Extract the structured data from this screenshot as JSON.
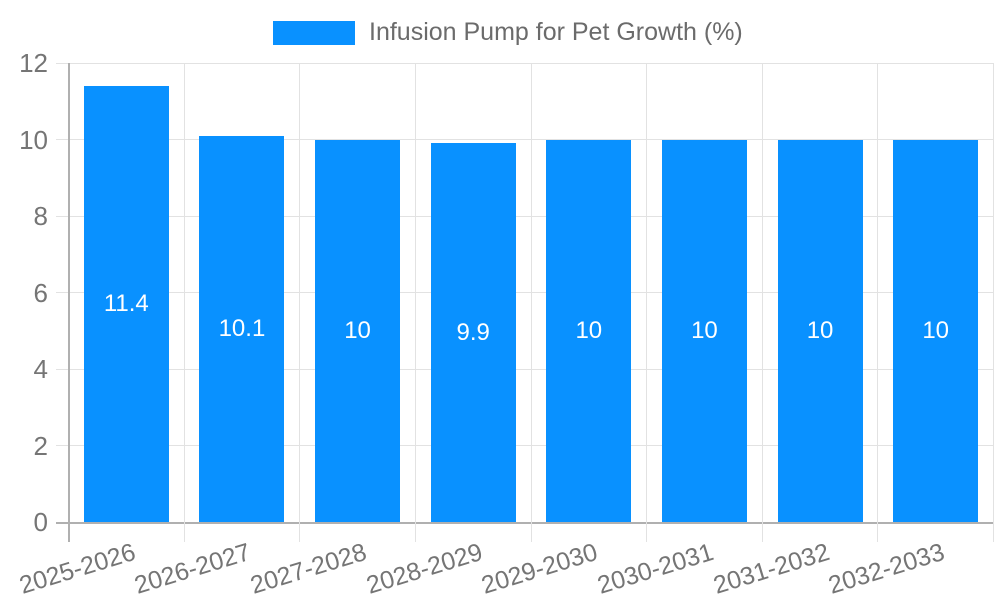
{
  "legend": {
    "label": "Infusion Pump for Pet Growth (%)"
  },
  "chart_data": {
    "type": "bar",
    "title": "Infusion Pump for Pet Growth (%)",
    "categories": [
      "2025-2026",
      "2026-2027",
      "2027-2028",
      "2028-2029",
      "2029-2030",
      "2030-2031",
      "2031-2032",
      "2032-2033"
    ],
    "values": [
      11.4,
      10.1,
      10,
      9.9,
      10,
      10,
      10,
      10
    ],
    "value_labels": [
      "11.4",
      "10.1",
      "10",
      "9.9",
      "10",
      "10",
      "10",
      "10"
    ],
    "xlabel": "",
    "ylabel": "",
    "ylim": [
      0,
      12
    ],
    "yticks": [
      0,
      2,
      4,
      6,
      8,
      10,
      12
    ],
    "ytick_labels": [
      "0",
      "2",
      "4",
      "6",
      "8",
      "10",
      "12"
    ],
    "grid": true,
    "legend_position": "top-center",
    "colors": {
      "bar": "#0991ff",
      "grid": "#e2e2e2",
      "axis": "#b0b0b0",
      "tick_text": "#757575",
      "legend_text": "#6b6b6b",
      "value_text": "#ffffff",
      "background": "#ffffff"
    }
  }
}
